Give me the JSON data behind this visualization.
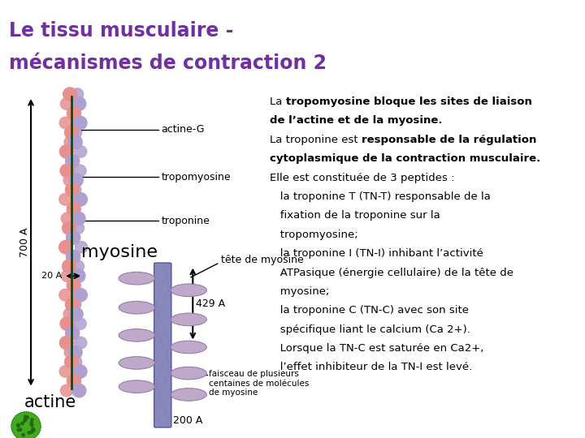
{
  "title_line1": "Le tissu musculaire -",
  "title_line2": "mécanismes de contraction 2",
  "title_color": "#7030A0",
  "title_bg": "#FFCC99",
  "separator_color": "#CC3300",
  "main_bg": "#FFFFFF",
  "label_actineG": "actine-G",
  "label_tropomyosine": "tropomyosine",
  "label_troponine": "troponine",
  "label_myosine": "myosine",
  "label_tete": "tête de myosine",
  "label_actine": "actine",
  "label_faisceau_1": "faisceau de plusieurs",
  "label_faisceau_2": "centaines de molécules",
  "label_faisceau_3": "de myosine",
  "label_700A": "700 A",
  "label_429A": "429 A",
  "label_20A": "20 A",
  "label_200A": "200 A",
  "actin_pink": "#E89090",
  "actin_lavender": "#B0A0D0",
  "green_line": "#005500",
  "myo_shaft_top": "#8888BB",
  "myo_shaft_bot": "#9999CC",
  "myo_head": "#C0A8C8",
  "arrow_red": "#CC2200",
  "right_lines": [
    {
      "text": "La ",
      "bold": false,
      "cont": true
    },
    {
      "text": "tropomyosine bloque les sites de liaison",
      "bold": true,
      "cont": false
    },
    {
      "text": "de l’actine et de la myosine.",
      "bold": true,
      "cont": false
    },
    {
      "text": "La t",
      "bold": false,
      "cont": true
    },
    {
      "text": "roponine est ",
      "bold": false,
      "cont": true
    },
    {
      "text": "responsable de la régulation",
      "bold": true,
      "cont": false
    },
    {
      "text": "cytoplasmique de la contraction musculaire.",
      "bold": true,
      "cont": false
    },
    {
      "text": "Elle est constituée de 3 peptides :",
      "bold": false,
      "cont": false
    },
    {
      "text": "   la troponine T (TN-T) responsable de la",
      "bold": false,
      "cont": false
    },
    {
      "text": "   fixation de la troponine sur la",
      "bold": false,
      "cont": false
    },
    {
      "text": "   tropomyosine;",
      "bold": false,
      "cont": false
    },
    {
      "text": "   la troponine I (TN-I) inhibant l’activité",
      "bold": false,
      "cont": false
    },
    {
      "text": "   ATPasique (énergie cellulaire) de la tête de",
      "bold": false,
      "cont": false
    },
    {
      "text": "   myosine;",
      "bold": false,
      "cont": false
    },
    {
      "text": "   la troponine C (TN-C) avec son site",
      "bold": false,
      "cont": false
    },
    {
      "text": "   spécifique liant le calcium (Ca 2+).",
      "bold": false,
      "cont": false
    },
    {
      "text": "   Lorsque la TN-C est saturée en Ca2+,",
      "bold": false,
      "cont": false
    },
    {
      "text": "   l’effet inhibiteur de la TN-I est levé.",
      "bold": false,
      "cont": false
    }
  ]
}
